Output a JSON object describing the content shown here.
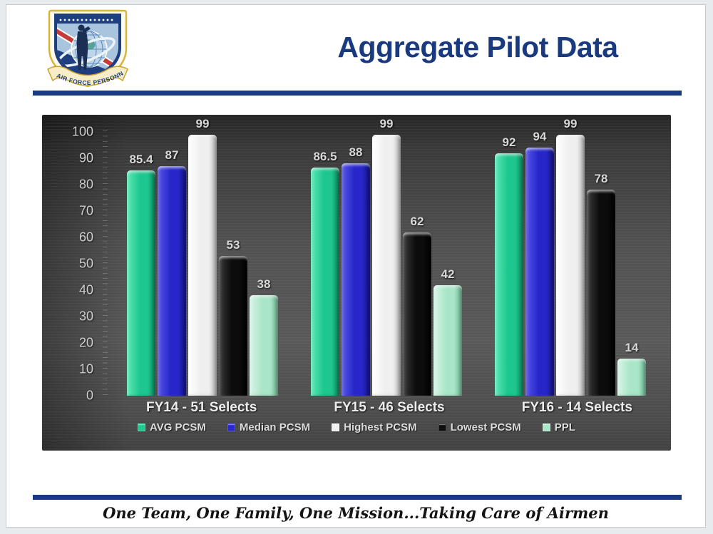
{
  "header": {
    "title": "Aggregate Pilot Data",
    "logo_banner_text": "AIR FORCE PERSONNEL CENTER"
  },
  "footer": {
    "motto": "One Team, One Family, One Mission...Taking Care of Airmen"
  },
  "colors": {
    "accent_navy": "#1a3a80",
    "chart_bg_dark": "#2a2a2a",
    "chart_bg_mid": "#565656",
    "axis_text": "#cfcfcf",
    "value_label": "#d8d8d8"
  },
  "chart_data": {
    "type": "bar",
    "title": "",
    "xlabel": "",
    "ylabel": "",
    "ylim": [
      0,
      100
    ],
    "y_ticks": [
      0,
      10,
      20,
      30,
      40,
      50,
      60,
      70,
      80,
      90,
      100
    ],
    "grid": "subtle horizontal pinstripes on dark gray panel",
    "legend_position": "bottom",
    "categories": [
      "FY14 - 51 Selects",
      "FY15 - 46 Selects",
      "FY16 - 14 Selects"
    ],
    "series": [
      {
        "name": "AVG PCSM",
        "color": "#1ec78f",
        "color_light": "#5ce8b6",
        "color_dark": "#0f9065",
        "values": [
          85.4,
          86.5,
          92
        ]
      },
      {
        "name": "Median PCSM",
        "color": "#2727c9",
        "color_light": "#5656e8",
        "color_dark": "#14148f",
        "values": [
          87,
          88,
          94
        ]
      },
      {
        "name": "Highest PCSM",
        "color": "#efefef",
        "color_light": "#ffffff",
        "color_dark": "#c6c6c6",
        "values": [
          99,
          99,
          99
        ]
      },
      {
        "name": "Lowest PCSM",
        "color": "#0c0c0c",
        "color_light": "#3a3a3a",
        "color_dark": "#000000",
        "values": [
          53,
          62,
          78
        ]
      },
      {
        "name": "PPL",
        "color": "#a9e5c7",
        "color_light": "#d8f5e8",
        "color_dark": "#76c39d",
        "values": [
          38,
          42,
          14
        ]
      }
    ]
  }
}
